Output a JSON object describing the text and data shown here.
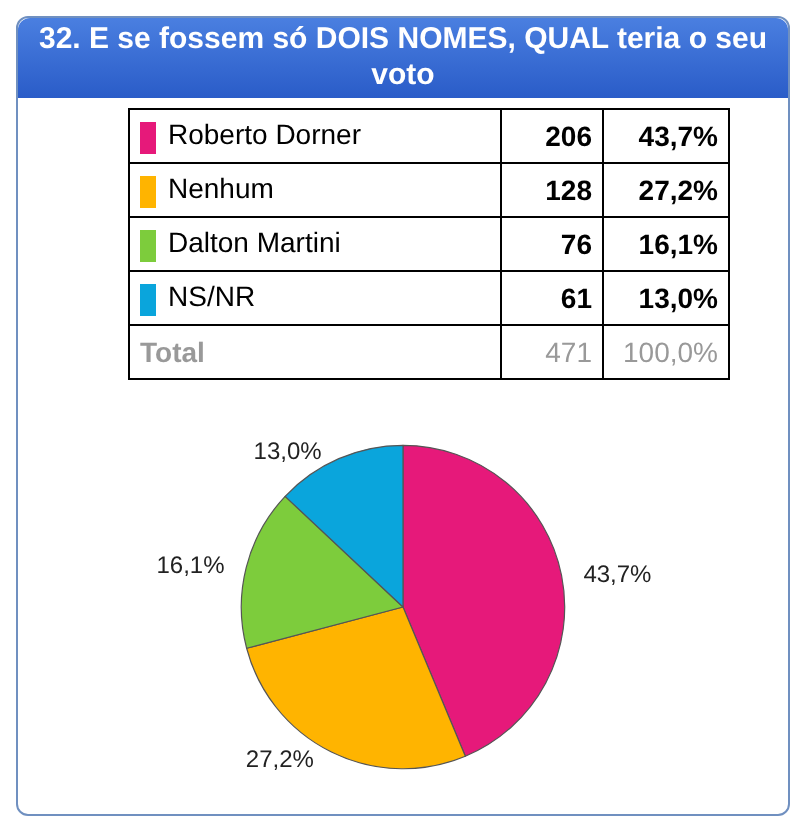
{
  "chart_data": {
    "type": "pie",
    "title": "32. E se fossem só DOIS NOMES, QUAL teria o seu voto",
    "categories": [
      "Roberto Dorner",
      "Nenhum",
      "Dalton Martini",
      "NS/NR"
    ],
    "values": [
      43.7,
      27.2,
      16.1,
      13.0
    ],
    "legend": "top",
    "value_labels": [
      "43,7%",
      "27,2%",
      "16,1%",
      "13,0%"
    ],
    "colors": [
      "#e6197a",
      "#ffb400",
      "#7dcc3c",
      "#0aa5dc"
    ],
    "annotations": [
      "206",
      "128",
      "76",
      "61",
      "Total",
      "471",
      "100,0%"
    ]
  }
}
